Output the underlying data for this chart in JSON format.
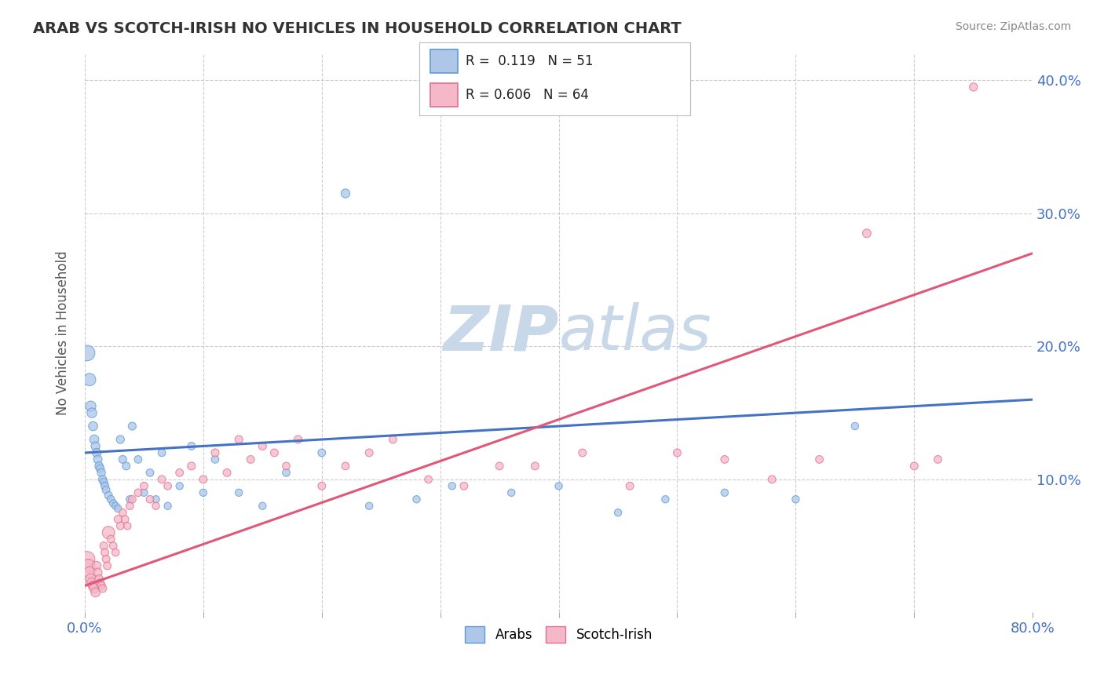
{
  "title": "ARAB VS SCOTCH-IRISH NO VEHICLES IN HOUSEHOLD CORRELATION CHART",
  "source_text": "Source: ZipAtlas.com",
  "ylabel": "No Vehicles in Household",
  "xlim": [
    0.0,
    0.8
  ],
  "ylim": [
    0.0,
    0.42
  ],
  "xticks": [
    0.0,
    0.1,
    0.2,
    0.3,
    0.4,
    0.5,
    0.6,
    0.7,
    0.8
  ],
  "yticks": [
    0.0,
    0.1,
    0.2,
    0.3,
    0.4
  ],
  "arab_R": 0.119,
  "arab_N": 51,
  "scotch_R": 0.606,
  "scotch_N": 64,
  "blue_face": "#aec6e8",
  "blue_edge": "#5b9bd5",
  "pink_face": "#f4b8c8",
  "pink_edge": "#e07090",
  "trend_blue": "#4472c4",
  "trend_pink": "#e05878",
  "watermark_color": "#c8d8e8",
  "background_color": "#ffffff",
  "arab_trend_start": 0.12,
  "arab_trend_end": 0.16,
  "scotch_trend_start": 0.02,
  "scotch_trend_end": 0.27,
  "arab_x": [
    0.002,
    0.004,
    0.005,
    0.006,
    0.007,
    0.008,
    0.009,
    0.01,
    0.011,
    0.012,
    0.013,
    0.014,
    0.015,
    0.016,
    0.017,
    0.018,
    0.02,
    0.022,
    0.024,
    0.026,
    0.028,
    0.03,
    0.032,
    0.035,
    0.038,
    0.04,
    0.045,
    0.05,
    0.055,
    0.06,
    0.065,
    0.07,
    0.08,
    0.09,
    0.1,
    0.11,
    0.13,
    0.15,
    0.17,
    0.2,
    0.22,
    0.24,
    0.28,
    0.31,
    0.36,
    0.4,
    0.45,
    0.49,
    0.54,
    0.6,
    0.65
  ],
  "arab_y": [
    0.195,
    0.175,
    0.155,
    0.15,
    0.14,
    0.13,
    0.125,
    0.12,
    0.115,
    0.11,
    0.108,
    0.105,
    0.1,
    0.098,
    0.095,
    0.092,
    0.088,
    0.085,
    0.082,
    0.08,
    0.078,
    0.13,
    0.115,
    0.11,
    0.085,
    0.14,
    0.115,
    0.09,
    0.105,
    0.085,
    0.12,
    0.08,
    0.095,
    0.125,
    0.09,
    0.115,
    0.09,
    0.08,
    0.105,
    0.12,
    0.315,
    0.08,
    0.085,
    0.095,
    0.09,
    0.095,
    0.075,
    0.085,
    0.09,
    0.085,
    0.14
  ],
  "arab_sizes": [
    200,
    130,
    90,
    80,
    70,
    70,
    65,
    65,
    60,
    58,
    55,
    55,
    55,
    52,
    52,
    50,
    50,
    48,
    46,
    45,
    45,
    55,
    52,
    50,
    45,
    52,
    48,
    45,
    48,
    45,
    48,
    45,
    45,
    50,
    45,
    48,
    45,
    45,
    48,
    50,
    65,
    45,
    45,
    45,
    45,
    45,
    45,
    45,
    45,
    45,
    45
  ],
  "scotch_x": [
    0.002,
    0.003,
    0.004,
    0.005,
    0.006,
    0.007,
    0.008,
    0.009,
    0.01,
    0.011,
    0.012,
    0.013,
    0.014,
    0.015,
    0.016,
    0.017,
    0.018,
    0.019,
    0.02,
    0.022,
    0.024,
    0.026,
    0.028,
    0.03,
    0.032,
    0.034,
    0.036,
    0.038,
    0.04,
    0.045,
    0.05,
    0.055,
    0.06,
    0.065,
    0.07,
    0.08,
    0.09,
    0.1,
    0.11,
    0.12,
    0.13,
    0.14,
    0.15,
    0.16,
    0.17,
    0.18,
    0.2,
    0.22,
    0.24,
    0.26,
    0.29,
    0.32,
    0.35,
    0.38,
    0.42,
    0.46,
    0.5,
    0.54,
    0.58,
    0.62,
    0.66,
    0.7,
    0.72,
    0.75
  ],
  "scotch_y": [
    0.04,
    0.035,
    0.03,
    0.025,
    0.022,
    0.02,
    0.018,
    0.015,
    0.035,
    0.03,
    0.025,
    0.022,
    0.02,
    0.018,
    0.05,
    0.045,
    0.04,
    0.035,
    0.06,
    0.055,
    0.05,
    0.045,
    0.07,
    0.065,
    0.075,
    0.07,
    0.065,
    0.08,
    0.085,
    0.09,
    0.095,
    0.085,
    0.08,
    0.1,
    0.095,
    0.105,
    0.11,
    0.1,
    0.12,
    0.105,
    0.13,
    0.115,
    0.125,
    0.12,
    0.11,
    0.13,
    0.095,
    0.11,
    0.12,
    0.13,
    0.1,
    0.095,
    0.11,
    0.11,
    0.12,
    0.095,
    0.12,
    0.115,
    0.1,
    0.115,
    0.285,
    0.11,
    0.115,
    0.395
  ],
  "scotch_sizes": [
    200,
    150,
    110,
    100,
    90,
    80,
    75,
    70,
    65,
    62,
    60,
    58,
    55,
    55,
    52,
    52,
    50,
    50,
    130,
    50,
    48,
    46,
    50,
    48,
    48,
    46,
    45,
    48,
    50,
    48,
    50,
    48,
    45,
    50,
    48,
    50,
    52,
    50,
    52,
    50,
    52,
    50,
    52,
    50,
    48,
    52,
    50,
    48,
    50,
    50,
    48,
    50,
    50,
    50,
    50,
    50,
    50,
    50,
    50,
    50,
    60,
    50,
    50,
    55
  ]
}
